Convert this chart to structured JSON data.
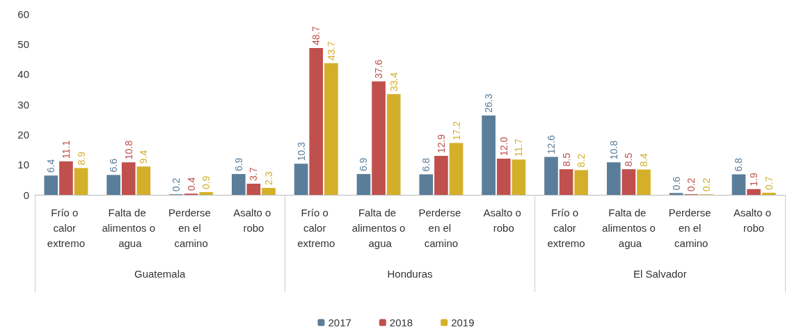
{
  "chart_data": {
    "type": "bar",
    "categories": [
      "Frío o calor extremo",
      "Falta de alimentos o agua",
      "Perderse en el camino",
      "Asalto o robo",
      "Frío o calor extremo",
      "Falta de alimentos o agua",
      "Perderse en el camino",
      "Asalto o robo",
      "Frío o calor extremo",
      "Falta de alimentos o agua",
      "Perderse en el camino",
      "Asalto o robo"
    ],
    "annotations": [
      "Guatemala",
      "Honduras",
      "El Salvador"
    ],
    "series": [
      {
        "name": "2017",
        "color": "#5a7d9a",
        "values": [
          6.4,
          6.6,
          0.2,
          6.9,
          10.3,
          6.9,
          6.8,
          26.3,
          12.6,
          10.8,
          0.6,
          6.8
        ],
        "value_labels": [
          "6.4",
          "6.6",
          "0.2",
          "6.9",
          "10.3",
          "6.9",
          "6.8",
          "26.3",
          "12.6",
          "10.8",
          "0.6",
          "6.8"
        ]
      },
      {
        "name": "2018",
        "color": "#c0504d",
        "values": [
          11.1,
          10.8,
          0.4,
          3.7,
          48.7,
          37.6,
          12.9,
          12.0,
          8.5,
          8.5,
          0.2,
          1.9
        ],
        "value_labels": [
          "11.1",
          "10.8",
          "0.4",
          "3.7",
          "48.7",
          "37.6",
          "12.9",
          "12.0",
          "8.5",
          "8.5",
          "0.2",
          "1.9"
        ]
      },
      {
        "name": "2019",
        "color": "#d4b02a",
        "values": [
          8.9,
          9.4,
          0.9,
          2.3,
          43.7,
          33.4,
          17.2,
          11.7,
          8.2,
          8.4,
          0.2,
          0.7
        ],
        "value_labels": [
          "8.9",
          "9.4",
          "0.9",
          "2.3",
          "43.7",
          "33.4",
          "17.2",
          "11.7",
          "8.2",
          "8.4",
          "0.2",
          "0.7"
        ]
      }
    ],
    "ylim": [
      0,
      60
    ],
    "yticks": [
      0,
      10,
      20,
      30,
      40,
      50,
      60
    ],
    "grid": false,
    "legend": "bottom"
  }
}
